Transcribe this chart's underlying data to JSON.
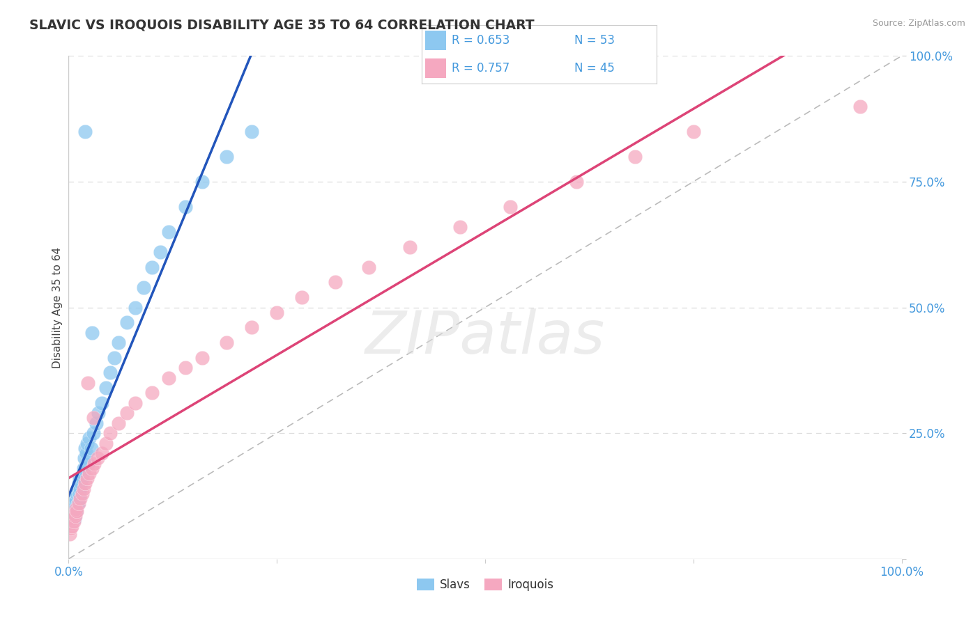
{
  "title": "SLAVIC VS IROQUOIS DISABILITY AGE 35 TO 64 CORRELATION CHART",
  "source": "Source: ZipAtlas.com",
  "ylabel": "Disability Age 35 to 64",
  "legend_slavs_R": "R = 0.653",
  "legend_slavs_N": "N = 53",
  "legend_iroquois_R": "R = 0.757",
  "legend_iroquois_N": "N = 45",
  "slavs_color": "#8DC8F0",
  "iroquois_color": "#F5A8C0",
  "slavs_line_color": "#2255BB",
  "iroquois_line_color": "#DD4477",
  "diagonal_color": "#BBBBBB",
  "background_color": "#FFFFFF",
  "grid_color": "#DDDDDD",
  "title_color": "#333333",
  "axis_label_color": "#4499DD",
  "watermark": "ZIPatlas",
  "slavs_x": [
    0.1,
    0.2,
    0.3,
    0.4,
    0.5,
    0.5,
    0.6,
    0.7,
    0.7,
    0.8,
    0.8,
    0.9,
    0.9,
    1.0,
    1.0,
    1.1,
    1.1,
    1.2,
    1.2,
    1.3,
    1.3,
    1.4,
    1.5,
    1.6,
    1.7,
    1.8,
    1.9,
    2.0,
    2.1,
    2.2,
    2.3,
    2.5,
    2.7,
    3.0,
    3.3,
    3.6,
    4.0,
    4.5,
    5.0,
    5.5,
    6.0,
    7.0,
    8.0,
    9.0,
    10.0,
    11.0,
    12.0,
    14.0,
    16.0,
    19.0,
    22.0,
    2.0,
    2.8
  ],
  "slavs_y": [
    7.0,
    8.0,
    7.5,
    9.0,
    8.5,
    10.0,
    9.0,
    11.0,
    8.0,
    12.0,
    10.0,
    9.5,
    11.5,
    10.5,
    13.0,
    11.0,
    14.0,
    12.0,
    15.0,
    13.0,
    16.0,
    14.0,
    15.0,
    16.0,
    17.0,
    18.0,
    20.0,
    22.0,
    21.0,
    23.0,
    19.0,
    24.0,
    22.0,
    25.0,
    27.0,
    29.0,
    31.0,
    34.0,
    37.0,
    40.0,
    43.0,
    47.0,
    50.0,
    54.0,
    58.0,
    61.0,
    65.0,
    70.0,
    75.0,
    80.0,
    85.0,
    85.0,
    45.0
  ],
  "iroquois_x": [
    0.1,
    0.2,
    0.3,
    0.4,
    0.5,
    0.6,
    0.7,
    0.8,
    0.9,
    1.0,
    1.2,
    1.4,
    1.6,
    1.8,
    2.0,
    2.2,
    2.5,
    2.8,
    3.1,
    3.5,
    4.0,
    4.5,
    5.0,
    6.0,
    7.0,
    8.0,
    10.0,
    12.0,
    14.0,
    16.0,
    19.0,
    22.0,
    25.0,
    28.0,
    32.0,
    36.0,
    41.0,
    47.0,
    53.0,
    61.0,
    68.0,
    75.0,
    95.0,
    3.0,
    2.3
  ],
  "iroquois_y": [
    5.0,
    6.0,
    7.0,
    6.5,
    8.0,
    7.5,
    9.0,
    8.5,
    10.0,
    9.5,
    11.0,
    12.0,
    13.0,
    14.0,
    15.0,
    16.0,
    17.0,
    18.0,
    19.0,
    20.0,
    21.0,
    23.0,
    25.0,
    27.0,
    29.0,
    31.0,
    33.0,
    36.0,
    38.0,
    40.0,
    43.0,
    46.0,
    49.0,
    52.0,
    55.0,
    58.0,
    62.0,
    66.0,
    70.0,
    75.0,
    80.0,
    85.0,
    90.0,
    28.0,
    35.0
  ]
}
